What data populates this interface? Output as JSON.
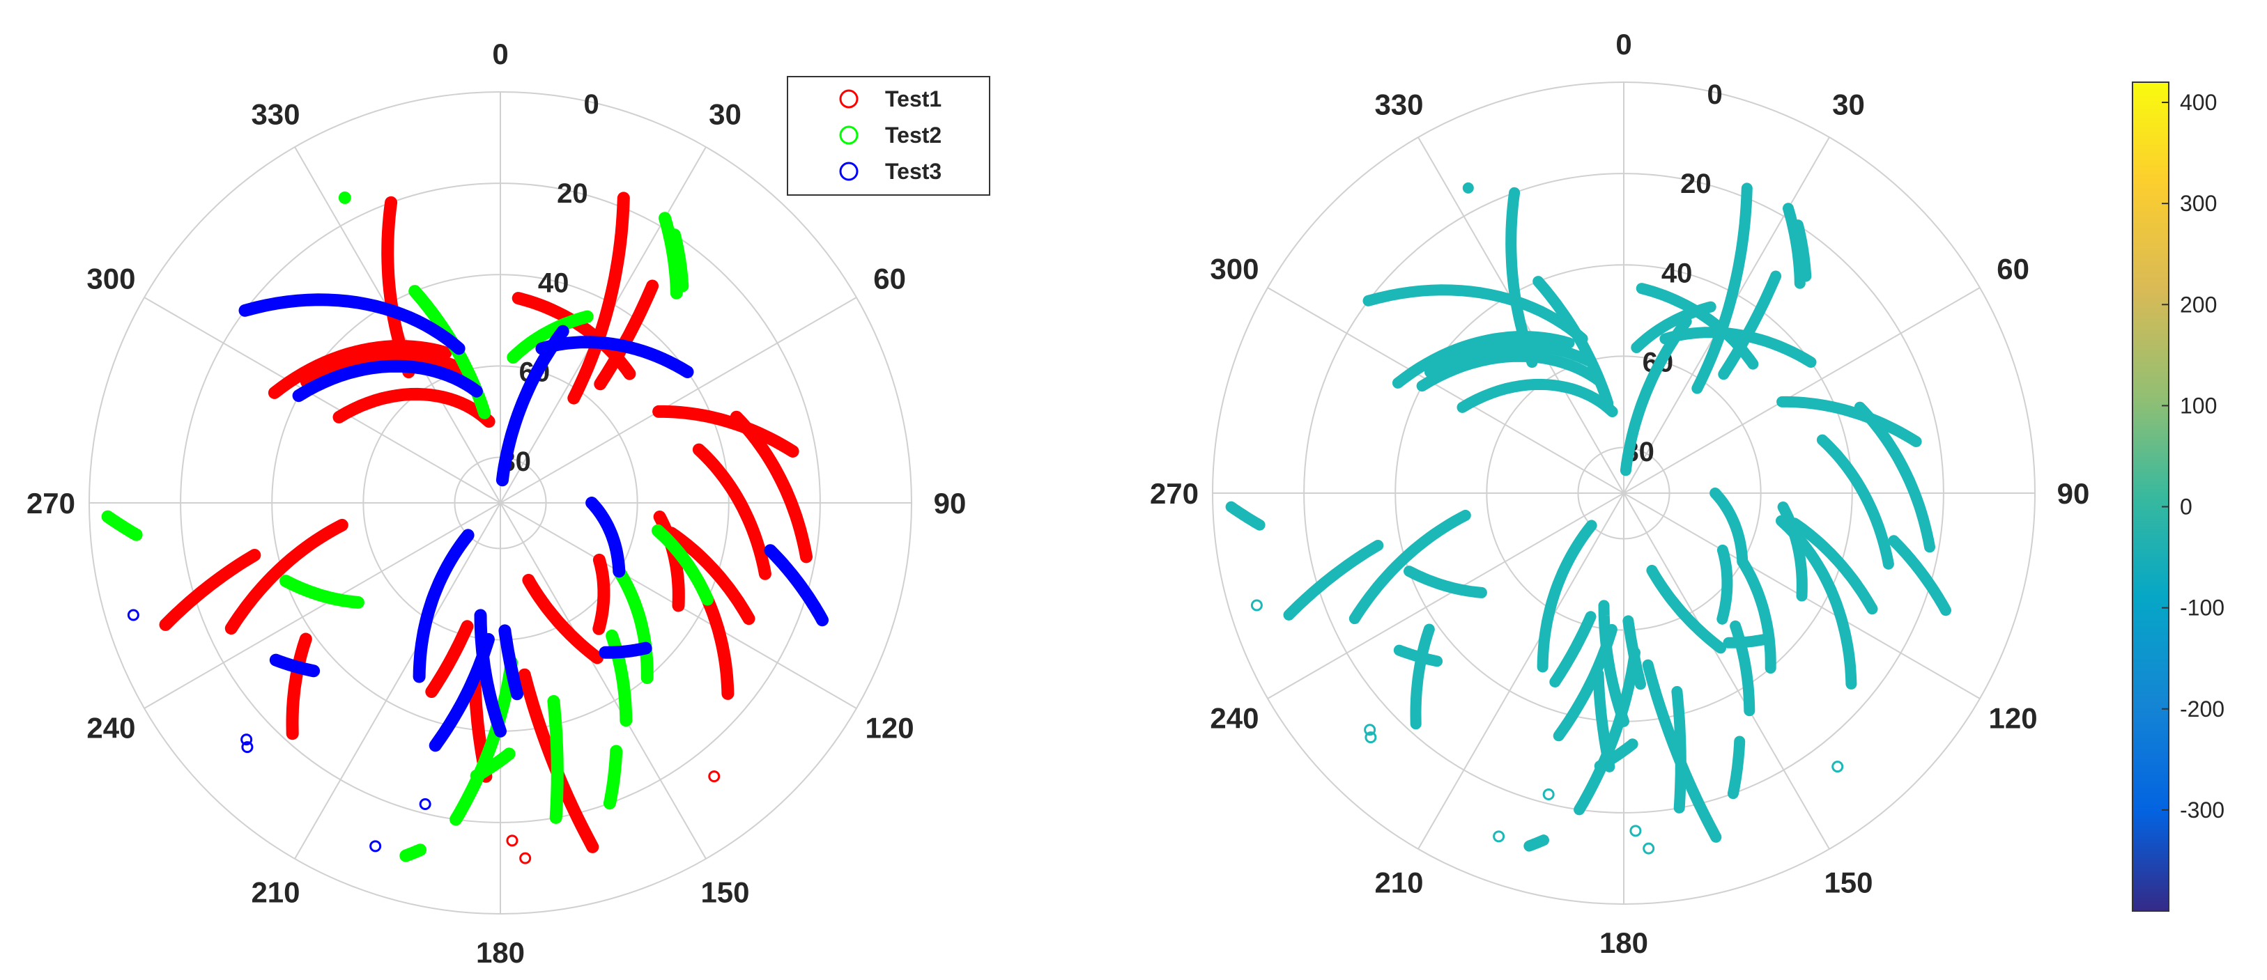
{
  "colors": {
    "grid": "#d0d0d0",
    "axis": "#bfbfbf",
    "text": "#262626"
  },
  "chart_data": [
    {
      "type": "scatter",
      "coordinate_system": "polar (skyplot)",
      "theta_direction": "clockwise",
      "theta_zero": "top",
      "theta_ticks": [
        "0",
        "30",
        "60",
        "90",
        "120",
        "150",
        "180",
        "210",
        "240",
        "270",
        "300",
        "330"
      ],
      "r_ticks": [
        "0",
        "20",
        "40",
        "60",
        "80"
      ],
      "r_range": [
        0,
        90
      ],
      "grid": true,
      "legend_position": "top-right",
      "series": [
        {
          "name": "Test1",
          "color": "#ff0000",
          "arcs": [
            {
              "start": [
                325,
                55
              ],
              "end": [
                340,
                20
              ]
            },
            {
              "start": [
                302,
                40
              ],
              "end": [
                345,
                60
              ]
            },
            {
              "start": [
                298,
                50
              ],
              "end": [
                352,
                72
              ]
            },
            {
              "start": [
                296,
                35
              ],
              "end": [
                340,
                55
              ]
            },
            {
              "start": [
                5,
                45
              ],
              "end": [
                45,
                50
              ]
            },
            {
              "start": [
                60,
                50
              ],
              "end": [
                80,
                25
              ]
            },
            {
              "start": [
                100,
                22
              ],
              "end": [
                70,
                35
              ]
            },
            {
              "start": [
                105,
                30
              ],
              "end": [
                75,
                45
              ]
            },
            {
              "start": [
                115,
                30
              ],
              "end": [
                100,
                52
              ]
            },
            {
              "start": [
                120,
                45
              ],
              "end": [
                95,
                55
              ]
            },
            {
              "start": [
                130,
                25
              ],
              "end": [
                115,
                40
              ]
            },
            {
              "start": [
                165,
                12
              ],
              "end": [
                172,
                52
              ]
            },
            {
              "start": [
                142,
                55
              ],
              "end": [
                120,
                65
              ]
            },
            {
              "start": [
                35,
                62
              ],
              "end": [
                22,
                18
              ]
            },
            {
              "start": [
                40,
                56
              ],
              "end": [
                35,
                32
              ]
            },
            {
              "start": [
                250,
                12
              ],
              "end": [
                258,
                35
              ]
            },
            {
              "start": [
                245,
                25
              ],
              "end": [
                262,
                55
              ]
            },
            {
              "start": [
                222,
                22
              ],
              "end": [
                235,
                38
              ]
            },
            {
              "start": [
                200,
                46
              ],
              "end": [
                195,
                62
              ]
            },
            {
              "start": [
                183,
                30
              ],
              "end": [
                188,
                50
              ]
            },
            {
              "start": [
                148,
                50
              ],
              "end": [
                160,
                72
              ]
            }
          ],
          "points": [
            [
              142,
              14
            ],
            [
              176,
              12
            ],
            [
              178,
              16
            ]
          ]
        },
        {
          "name": "Test2",
          "color": "#00ff00",
          "arcs": [
            {
              "start": [
                333,
                15
              ],
              "end": [
                333,
                15
              ]
            },
            {
              "start": [
                338,
                40
              ],
              "end": [
                350,
                70
              ]
            },
            {
              "start": [
                25,
                45
              ],
              "end": [
                5,
                58
              ]
            },
            {
              "start": [
                40,
                30
              ],
              "end": [
                30,
                18
              ]
            },
            {
              "start": [
                40,
                28
              ],
              "end": [
                33,
                20
              ]
            },
            {
              "start": [
                265,
                10
              ],
              "end": [
                268,
                4
              ]
            },
            {
              "start": [
                250,
                40
              ],
              "end": [
                235,
                52
              ]
            },
            {
              "start": [
                115,
                40
              ],
              "end": [
                100,
                55
              ]
            },
            {
              "start": [
                140,
                40
              ],
              "end": [
                120,
                60
              ]
            },
            {
              "start": [
                150,
                35
              ],
              "end": [
                140,
                52
              ]
            },
            {
              "start": [
                160,
                20
              ],
              "end": [
                155,
                30
              ]
            },
            {
              "start": [
                170,
                20
              ],
              "end": [
                165,
                45
              ]
            },
            {
              "start": [
                188,
                20
              ],
              "end": [
                176,
                55
              ]
            },
            {
              "start": [
                195,
                10
              ],
              "end": [
                193,
                12
              ]
            },
            {
              "start": [
                185,
                30
              ],
              "end": [
                178,
                35
              ]
            }
          ],
          "points": []
        },
        {
          "name": "Test3",
          "color": "#0000ff",
          "arcs": [
            {
              "start": [
                307,
                20
              ],
              "end": [
                345,
                55
              ]
            },
            {
              "start": [
                298,
                40
              ],
              "end": [
                348,
                65
              ]
            },
            {
              "start": [
                235,
                30
              ],
              "end": [
                228,
                35
              ]
            },
            {
              "start": [
                195,
                35
              ],
              "end": [
                185,
                60
              ]
            },
            {
              "start": [
                180,
                40
              ],
              "end": [
                190,
                65
              ]
            },
            {
              "start": [
                175,
                48
              ],
              "end": [
                178,
                62
              ]
            },
            {
              "start": [
                20,
                50
              ],
              "end": [
                5,
                85
              ]
            },
            {
              "start": [
                55,
                40
              ],
              "end": [
                15,
                55
              ]
            },
            {
              "start": [
                110,
                15
              ],
              "end": [
                100,
                30
              ]
            },
            {
              "start": [
                135,
                45
              ],
              "end": [
                145,
                50
              ]
            },
            {
              "start": [
                90,
                70
              ],
              "end": [
                120,
                60
              ]
            },
            {
              "start": [
                205,
                48
              ],
              "end": [
                225,
                80
              ]
            }
          ],
          "points": [
            [
              253,
              6
            ],
            [
              226,
              13
            ],
            [
              227,
              14
            ],
            [
              194,
              22
            ],
            [
              200,
              10
            ]
          ]
        }
      ]
    },
    {
      "type": "scatter",
      "coordinate_system": "polar (skyplot)",
      "theta_direction": "clockwise",
      "theta_zero": "top",
      "theta_ticks": [
        "0",
        "30",
        "60",
        "90",
        "120",
        "150",
        "180",
        "210",
        "240",
        "270",
        "300",
        "330"
      ],
      "r_ticks": [
        "0",
        "20",
        "40",
        "60",
        "80"
      ],
      "r_range": [
        0,
        90
      ],
      "grid": true,
      "colorbar": {
        "range": [
          -400,
          420
        ],
        "ticks": [
          "400",
          "300",
          "200",
          "100",
          "0",
          "-100",
          "-200",
          "-300"
        ],
        "colormap": "parula"
      },
      "dominant_value": 0,
      "dominant_color": "#1cb8b8"
    }
  ]
}
